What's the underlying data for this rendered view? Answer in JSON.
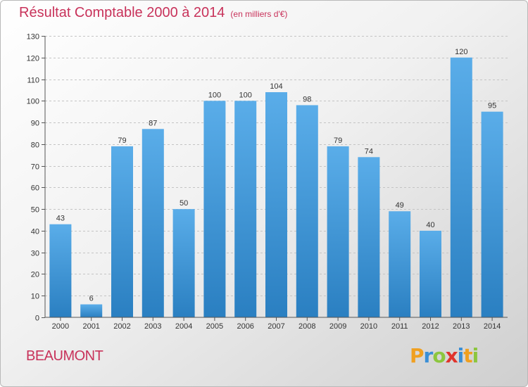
{
  "title": "Résultat Comptable 2000 à 2014",
  "subtitle": "(en milliers d'€)",
  "city": "BEAUMONT",
  "logo": "Proxiti",
  "colors": {
    "title": "#c8325a",
    "bar_light": "#5aade9",
    "bar_dark": "#2a7fc1"
  },
  "chart_data": {
    "type": "bar",
    "title": "Résultat Comptable 2000 à 2014",
    "subtitle": "(en milliers d'€)",
    "categories": [
      "2000",
      "2001",
      "2002",
      "2003",
      "2004",
      "2005",
      "2006",
      "2007",
      "2008",
      "2009",
      "2010",
      "2011",
      "2012",
      "2013",
      "2014"
    ],
    "values": [
      43,
      6,
      79,
      87,
      50,
      100,
      100,
      104,
      98,
      79,
      74,
      49,
      40,
      120,
      95
    ],
    "ylim": [
      0,
      130
    ],
    "yticks": [
      0,
      10,
      20,
      30,
      40,
      50,
      60,
      70,
      80,
      90,
      100,
      110,
      120,
      130
    ],
    "grid": true,
    "data_labels": true
  }
}
